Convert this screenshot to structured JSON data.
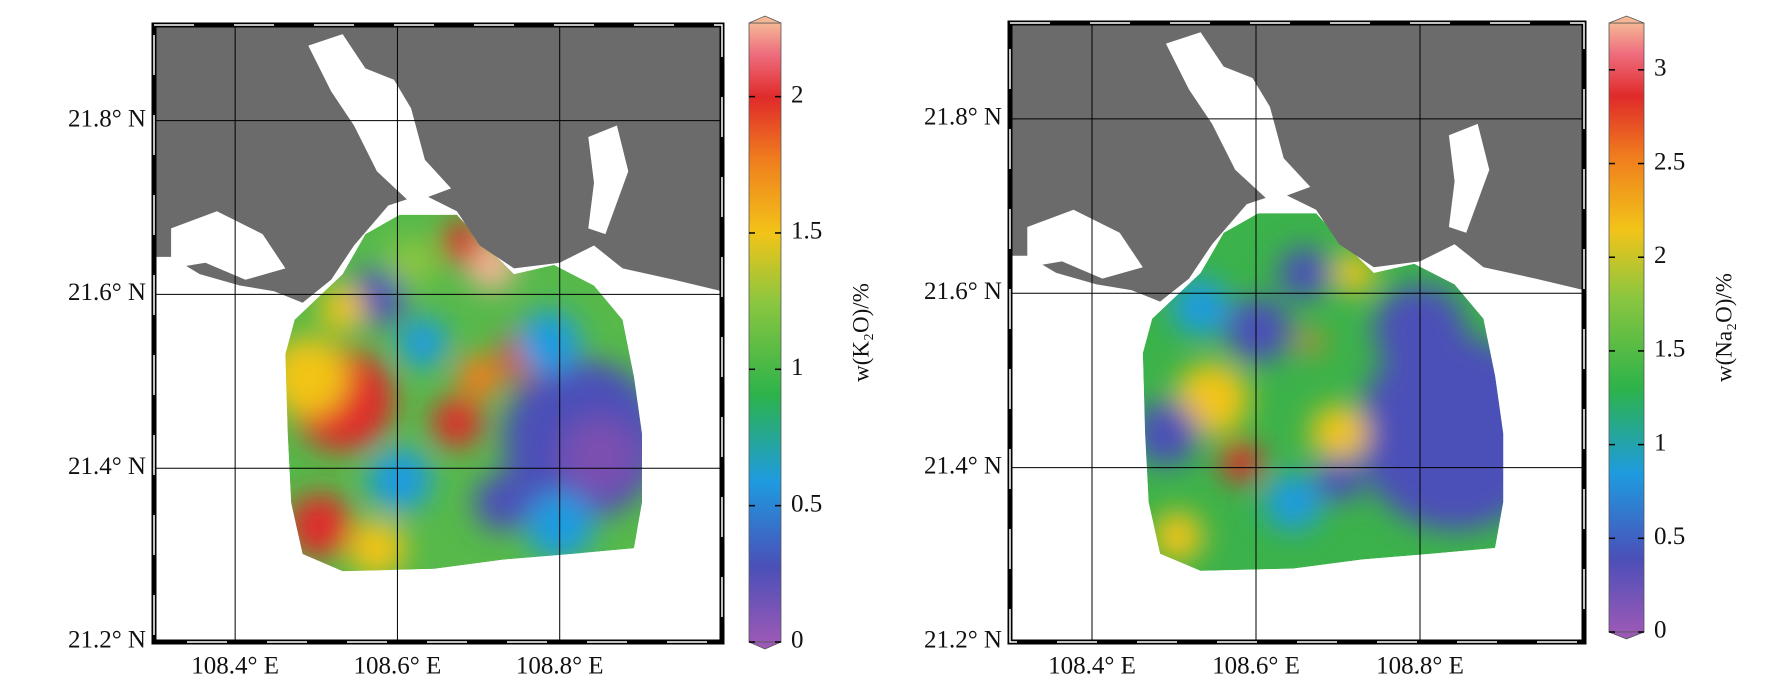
{
  "maps": [
    {
      "xlim": [
        108.3,
        109.0
      ],
      "ylim": [
        21.2,
        21.91
      ],
      "xticks": [
        {
          "value": 108.4,
          "label": "108.4° E"
        },
        {
          "value": 108.6,
          "label": "108.6° E"
        },
        {
          "value": 108.8,
          "label": "108.8° E"
        }
      ],
      "yticks": [
        {
          "value": 21.2,
          "label": "21.2° N"
        },
        {
          "value": 21.4,
          "label": "21.4° N"
        },
        {
          "value": 21.6,
          "label": "21.6° N"
        },
        {
          "value": 21.8,
          "label": "21.8° N"
        }
      ],
      "colorbar": {
        "label": "w(K₂O)/%",
        "lim": [
          0,
          2.27
        ],
        "ticks": [
          0,
          0.5,
          1,
          1.5,
          2
        ]
      }
    },
    {
      "xlim": [
        108.3,
        109.0
      ],
      "ylim": [
        21.2,
        21.91
      ],
      "xticks": [
        {
          "value": 108.4,
          "label": "108.4° E"
        },
        {
          "value": 108.6,
          "label": "108.6° E"
        },
        {
          "value": 108.8,
          "label": "108.8° E"
        }
      ],
      "yticks": [
        {
          "value": 21.2,
          "label": "21.2° N"
        },
        {
          "value": 21.4,
          "label": "21.4° N"
        },
        {
          "value": 21.6,
          "label": "21.6° N"
        },
        {
          "value": 21.8,
          "label": "21.8° N"
        }
      ],
      "colorbar": {
        "label": "w(Na₂O)/%",
        "lim": [
          0,
          3.25
        ],
        "ticks": [
          0,
          0.5,
          1,
          1.5,
          2,
          2.5,
          3
        ]
      }
    }
  ]
}
